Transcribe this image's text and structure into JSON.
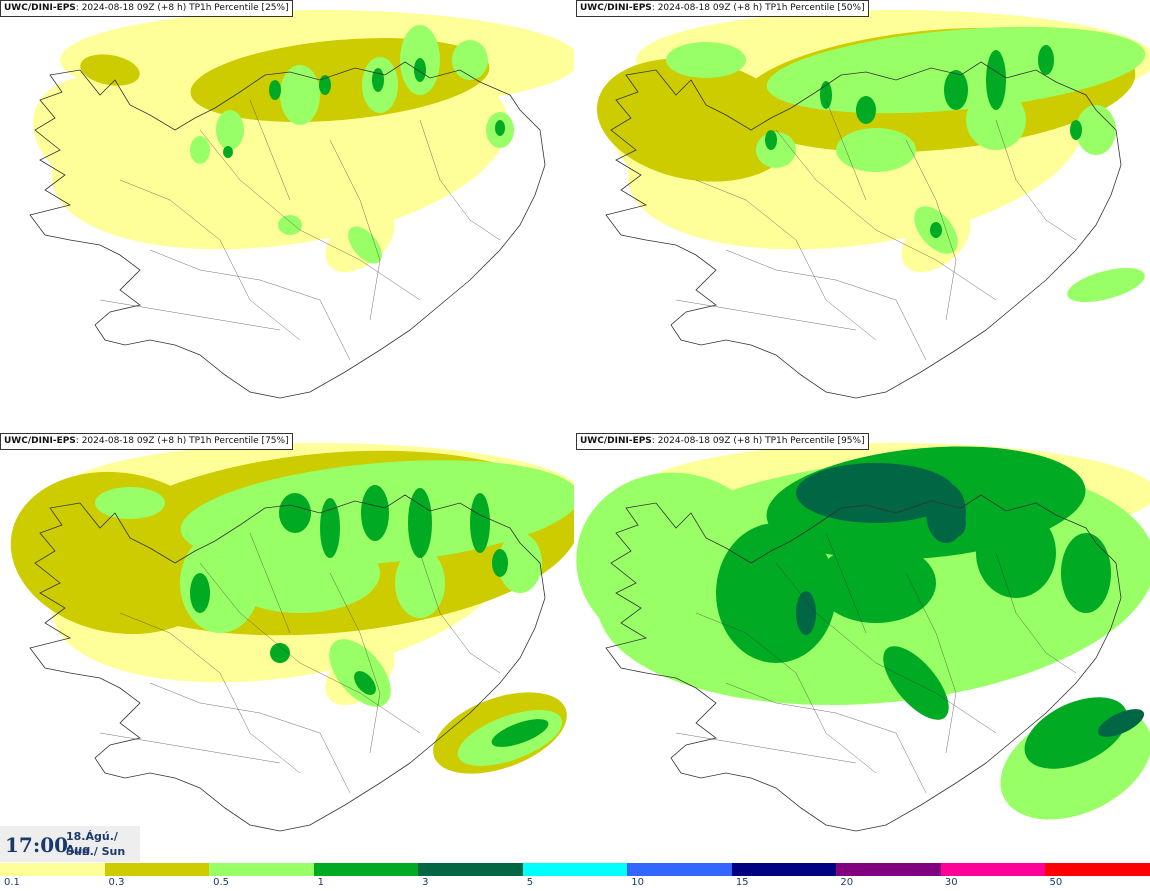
{
  "panels": [
    {
      "model": "UWC/DINI-EPS",
      "meta": "2024-08-18 09Z (+8 h)",
      "product": "TP1h Percentile [25%]",
      "level": 1
    },
    {
      "model": "UWC/DINI-EPS",
      "meta": "2024-08-18 09Z (+8 h)",
      "product": "TP1h Percentile [50%]",
      "level": 2
    },
    {
      "model": "UWC/DINI-EPS",
      "meta": "2024-08-18 09Z (+8 h)",
      "product": "TP1h Percentile [75%]",
      "level": 3
    },
    {
      "model": "UWC/DINI-EPS",
      "meta": "2024-08-18 09Z (+8 h)",
      "product": "TP1h Percentile [95%]",
      "level": 4
    }
  ],
  "valid_time": {
    "time": "17:00",
    "date_line": "18.Ágú./ Aug",
    "day_line": "Sun./ Sun"
  },
  "colorbar": {
    "colors": [
      "#ffff99",
      "#cccc00",
      "#99ff66",
      "#00aa22",
      "#006644",
      "#00ffff",
      "#3366ff",
      "#000080",
      "#800080",
      "#ff0099",
      "#ff0000"
    ],
    "labels": [
      "0.1",
      "0.3",
      "0.5",
      "1",
      "3",
      "5",
      "10",
      "15",
      "20",
      "30",
      "50"
    ]
  },
  "palette": {
    "light_yellow": "#ffff99",
    "olive": "#cccc00",
    "light_green": "#99ff66",
    "green": "#00aa22",
    "dark_green": "#006644",
    "outline": "#333333"
  }
}
